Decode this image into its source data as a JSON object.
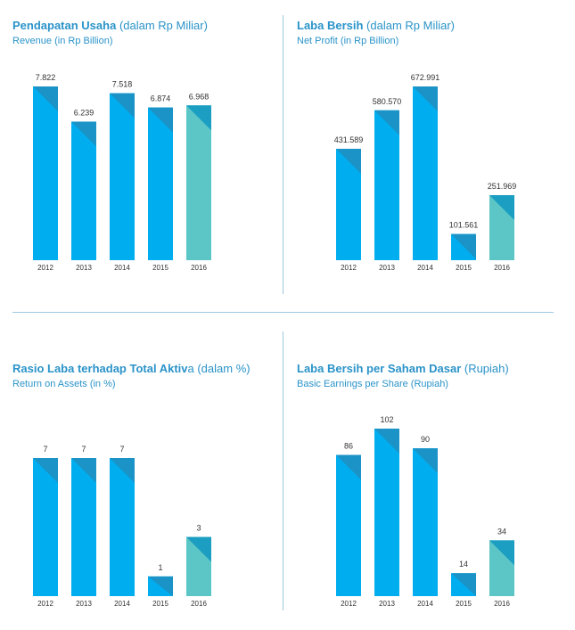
{
  "colors": {
    "bar": "#00adef",
    "bar_dark": "#1b93c7",
    "bar_highlight": "#5cc6c6",
    "bar_highlight_dark": "#1b9ec2",
    "title": "#2a93c9",
    "text": "#333333"
  },
  "chart_data": [
    {
      "type": "bar",
      "title_bold": "Pendapatan Usaha",
      "title_rest": " (dalam Rp Miliar)",
      "subtitle": "Revenue (in Rp Billion)",
      "categories": [
        "2012",
        "2013",
        "2014",
        "2015",
        "2016"
      ],
      "values": [
        7822,
        6239,
        7518,
        6874,
        6968
      ],
      "value_labels": [
        "7.822",
        "6.239",
        "7.518",
        "6.874",
        "6.968"
      ],
      "highlight_index": 4
    },
    {
      "type": "bar",
      "title_bold": "Laba Bersih",
      "title_rest": " (dalam Rp Miliar)",
      "subtitle": "Net Profit (in Rp Billion)",
      "categories": [
        "2012",
        "2013",
        "2014",
        "2015",
        "2016"
      ],
      "values": [
        431.589,
        580.57,
        672.991,
        101.561,
        251.969
      ],
      "value_labels": [
        "431.589",
        "580.570",
        "672.991",
        "101.561",
        "251.969"
      ],
      "highlight_index": 4
    },
    {
      "type": "bar",
      "title_bold": "Rasio Laba terhadap Total Aktiv",
      "title_rest": "a (dalam %)",
      "subtitle": "Return on Assets (in %)",
      "categories": [
        "2012",
        "2013",
        "2014",
        "2015",
        "2016"
      ],
      "values": [
        7,
        7,
        7,
        1,
        3
      ],
      "value_labels": [
        "7",
        "7",
        "7",
        "1",
        "3"
      ],
      "highlight_index": 4
    },
    {
      "type": "bar",
      "title_bold": "Laba Bersih per Saham Dasar",
      "title_rest": " (Rupiah)",
      "subtitle": "Basic Earnings per Share (Rupiah)",
      "categories": [
        "2012",
        "2013",
        "2014",
        "2015",
        "2016"
      ],
      "values": [
        86,
        102,
        90,
        14,
        34
      ],
      "value_labels": [
        "86",
        "102",
        "90",
        "14",
        "34"
      ],
      "highlight_index": 4
    }
  ]
}
